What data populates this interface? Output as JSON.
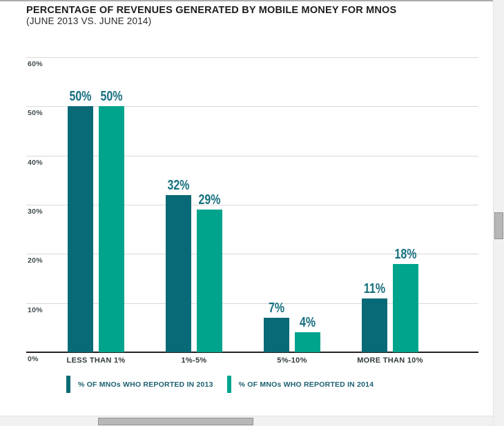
{
  "page": {
    "title": "PERCENTAGE OF REVENUES GENERATED BY MOBILE MONEY FOR MNOS",
    "subtitle": "(JUNE 2013 VS. JUNE 2014)"
  },
  "chart_data": {
    "type": "bar",
    "title": "PERCENTAGE OF REVENUES GENERATED BY MOBILE MONEY FOR MNOS",
    "subtitle": "(JUNE 2013 VS. JUNE 2014)",
    "categories": [
      "LESS THAN 1%",
      "1%-5%",
      "5%-10%",
      "MORE THAN 10%"
    ],
    "series": [
      {
        "name": "% OF MNOs WHO REPORTED IN 2013",
        "color": "#086a76",
        "values": [
          50,
          32,
          7,
          11
        ]
      },
      {
        "name": "% OF MNOs WHO REPORTED IN 2014",
        "color": "#00a48d",
        "values": [
          50,
          29,
          4,
          18
        ]
      }
    ],
    "value_labels": [
      "50%",
      "50%",
      "32%",
      "29%",
      "7%",
      "4%",
      "11%",
      "18%"
    ],
    "value_suffix": "%",
    "y_ticks": [
      0,
      10,
      20,
      30,
      40,
      50,
      60
    ],
    "y_tick_labels": [
      "0%",
      "10%",
      "20%",
      "30%",
      "40%",
      "50%",
      "60%"
    ],
    "ylim": [
      0,
      60
    ],
    "grid": true,
    "legend_position": "bottom",
    "colors": {
      "series_2013": "#086a76",
      "series_2014": "#00a48d",
      "value_label": "#17707f",
      "axis_line": "#231f20",
      "gridline": "#d8d8d8"
    }
  }
}
